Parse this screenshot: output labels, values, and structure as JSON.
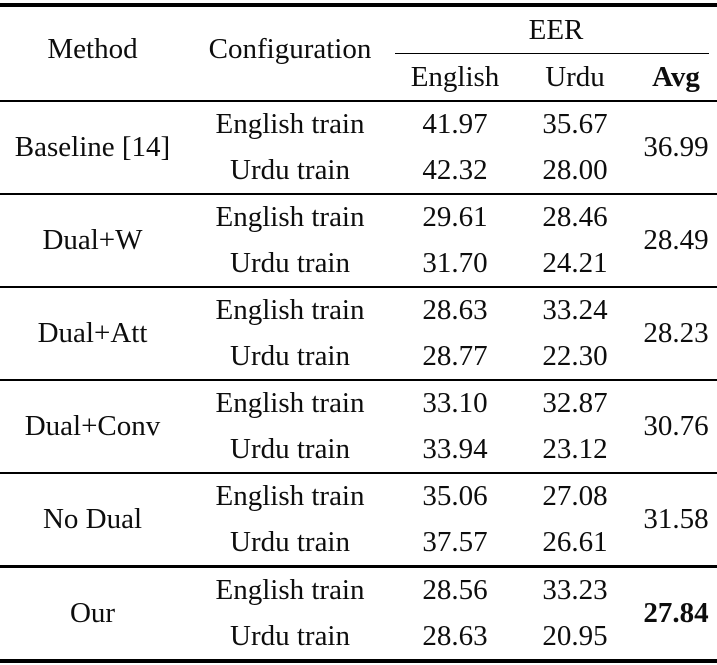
{
  "header": {
    "method": "Method",
    "configuration": "Configuration",
    "eer_group": "EER",
    "columns": {
      "english": "English",
      "urdu": "Urdu",
      "avg": "Avg"
    }
  },
  "groups": [
    {
      "method": "Baseline [14]",
      "rows": [
        {
          "config": "English train",
          "english": "41.97",
          "urdu": "35.67"
        },
        {
          "config": "Urdu train",
          "english": "42.32",
          "urdu": "28.00"
        }
      ],
      "avg": "36.99"
    },
    {
      "method": "Dual+W",
      "rows": [
        {
          "config": "English train",
          "english": "29.61",
          "urdu": "28.46"
        },
        {
          "config": "Urdu train",
          "english": "31.70",
          "urdu": "24.21"
        }
      ],
      "avg": "28.49"
    },
    {
      "method": "Dual+Att",
      "rows": [
        {
          "config": "English train",
          "english": "28.63",
          "urdu": "33.24"
        },
        {
          "config": "Urdu train",
          "english": "28.77",
          "urdu": "22.30"
        }
      ],
      "avg": "28.23"
    },
    {
      "method": "Dual+Conv",
      "rows": [
        {
          "config": "English train",
          "english": "33.10",
          "urdu": "32.87"
        },
        {
          "config": "Urdu train",
          "english": "33.94",
          "urdu": "23.12"
        }
      ],
      "avg": "30.76"
    },
    {
      "method": "No Dual",
      "rows": [
        {
          "config": "English train",
          "english": "35.06",
          "urdu": "27.08"
        },
        {
          "config": "Urdu train",
          "english": "37.57",
          "urdu": "26.61"
        }
      ],
      "avg": "31.58"
    },
    {
      "method": "Our",
      "rows": [
        {
          "config": "English train",
          "english": "28.56",
          "urdu": "33.23"
        },
        {
          "config": "Urdu train",
          "english": "28.63",
          "urdu": "20.95"
        }
      ],
      "avg": "27.84"
    }
  ],
  "colors": {
    "text": "#0d0d0d",
    "rule": "#000000",
    "background": "#ffffff"
  }
}
